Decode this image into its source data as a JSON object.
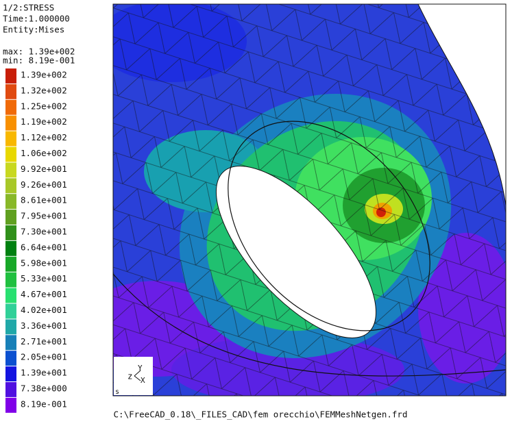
{
  "header": {
    "lines": [
      "1/2:STRESS",
      "Time:1.000000",
      "Entity:Mises"
    ],
    "max": "max: 1.39e+002",
    "min": "min: 8.19e-001"
  },
  "legend": {
    "labels": [
      "1.39e+002",
      "1.32e+002",
      "1.25e+002",
      "1.19e+002",
      "1.12e+002",
      "1.06e+002",
      "9.92e+001",
      "9.26e+001",
      "8.61e+001",
      "7.95e+001",
      "7.30e+001",
      "6.64e+001",
      "5.98e+001",
      "5.33e+001",
      "4.67e+001",
      "4.02e+001",
      "3.36e+001",
      "2.71e+001",
      "2.05e+001",
      "1.39e+001",
      "7.38e+000",
      "8.19e-001"
    ]
  },
  "viewport": {
    "axes": {
      "z": "z",
      "y": "Y",
      "x": "X"
    },
    "corner": "s"
  },
  "footer": {
    "file": "C:\\FreeCAD_0.18\\_FILES_CAD\\fem orecchio\\FEMMeshNetgen.frd"
  }
}
